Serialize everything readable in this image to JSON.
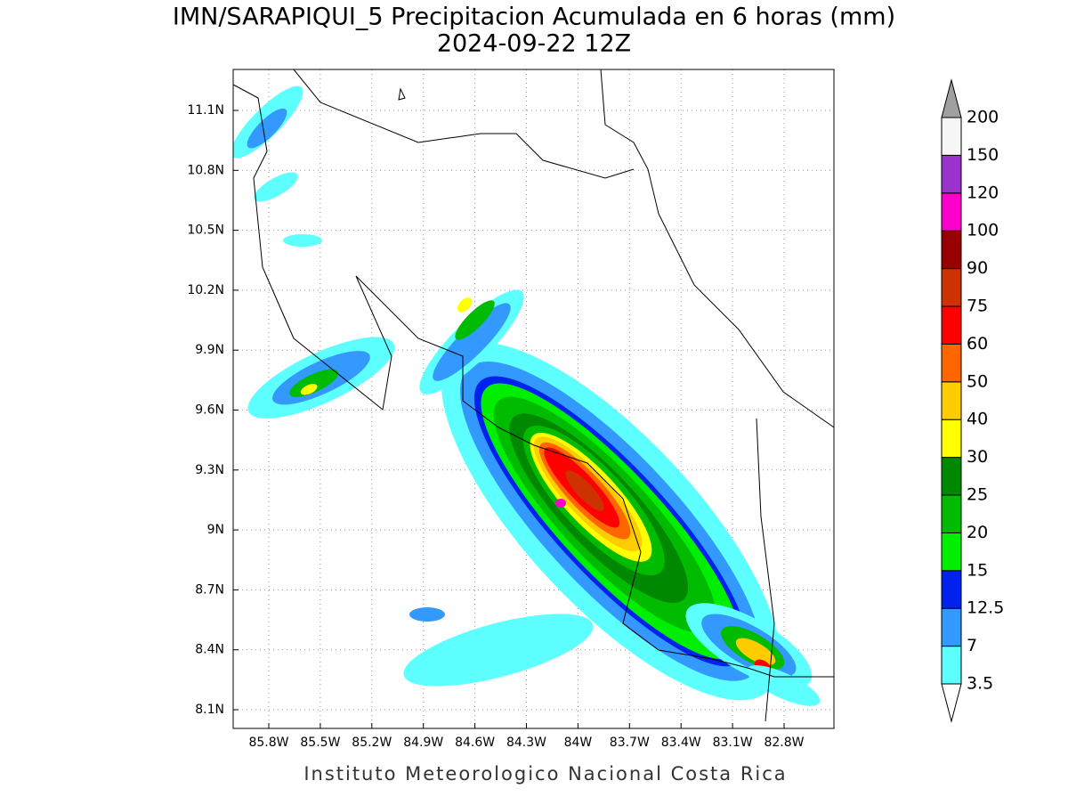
{
  "map": {
    "title": "IMN/SARAPIQUI_5 Precipitacion Acumulada en 6 horas (mm)",
    "subtitle": "2024-09-22 12Z",
    "footer": "Instituto Meteorologico Nacional Costa Rica",
    "lon_labels": [
      "85.8W",
      "85.5W",
      "85.2W",
      "84.9W",
      "84.6W",
      "84.3W",
      "84W",
      "83.7W",
      "83.4W",
      "83.1W",
      "82.8W"
    ],
    "lat_labels": [
      "11.1N",
      "10.8N",
      "10.5N",
      "10.2N",
      "9.9N",
      "9.6N",
      "9.3N",
      "9N",
      "8.7N",
      "8.4N",
      "8.1N"
    ],
    "colorbar": {
      "labels": [
        "3.5",
        "7",
        "12.5",
        "15",
        "20",
        "25",
        "30",
        "40",
        "50",
        "60",
        "75",
        "90",
        "100",
        "120",
        "150",
        "200"
      ],
      "colors": [
        "#5effff",
        "#3399ff",
        "#0022ee",
        "#00ee00",
        "#00bb00",
        "#008800",
        "#ffff00",
        "#ffcc00",
        "#ff6600",
        "#ff0000",
        "#cc3300",
        "#990000",
        "#ff00cc",
        "#9933cc",
        "#f6f6f6"
      ],
      "under_color": "#ffffff",
      "over_color": "#a0a0a0"
    }
  }
}
